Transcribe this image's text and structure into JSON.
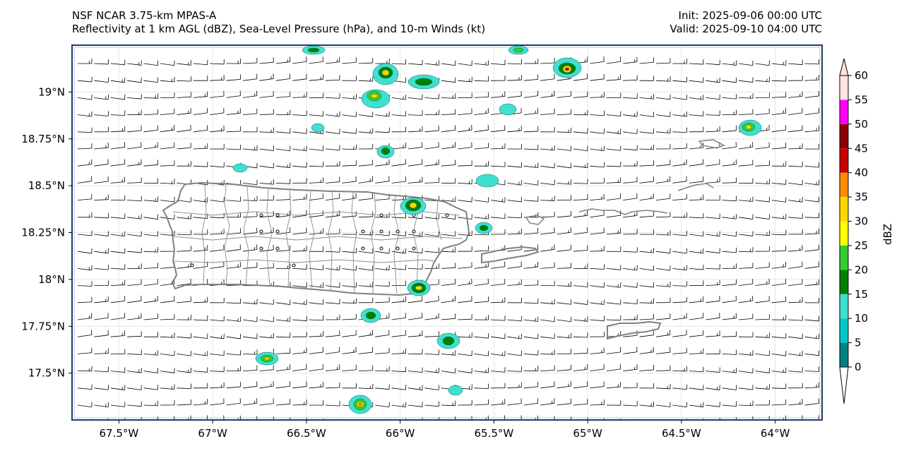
{
  "header": {
    "model": "NSF NCAR 3.75-km MPAS-A",
    "fields": "Reflectivity at 1 km AGL (dBZ), Sea-Level Pressure (hPa), and 10-m Winds (kt)",
    "init": "Init: 2025-09-06 00:00 UTC",
    "valid": "Valid: 2025-09-10 04:00 UTC"
  },
  "map": {
    "lon_range": [
      -67.75,
      -63.75
    ],
    "lat_range": [
      17.25,
      19.25
    ],
    "lon_ticks": [
      "67.5°W",
      "67°W",
      "66.5°W",
      "66°W",
      "65.5°W",
      "65°W",
      "64.5°W",
      "64°W"
    ],
    "lat_ticks": [
      "19°N",
      "18.75°N",
      "18.5°N",
      "18.25°N",
      "18°N",
      "17.75°N",
      "17.5°N"
    ],
    "wind_barbs": "easterly ~5-10 kt across domain",
    "colors": {
      "frame": "#1f3a6e",
      "land_outline": "#808080",
      "municipal": "#8a8a8a"
    }
  },
  "colorbar": {
    "label": "dBZ",
    "ticks": [
      "0",
      "5",
      "10",
      "15",
      "20",
      "25",
      "30",
      "35",
      "40",
      "45",
      "50",
      "55",
      "60"
    ],
    "colors": [
      "#008080",
      "#00c8c8",
      "#40e0d0",
      "#008000",
      "#32cd32",
      "#ffff00",
      "#ffd700",
      "#ff8c00",
      "#cc0000",
      "#8b0000",
      "#ff00ff",
      "#ffe4e1"
    ]
  }
}
